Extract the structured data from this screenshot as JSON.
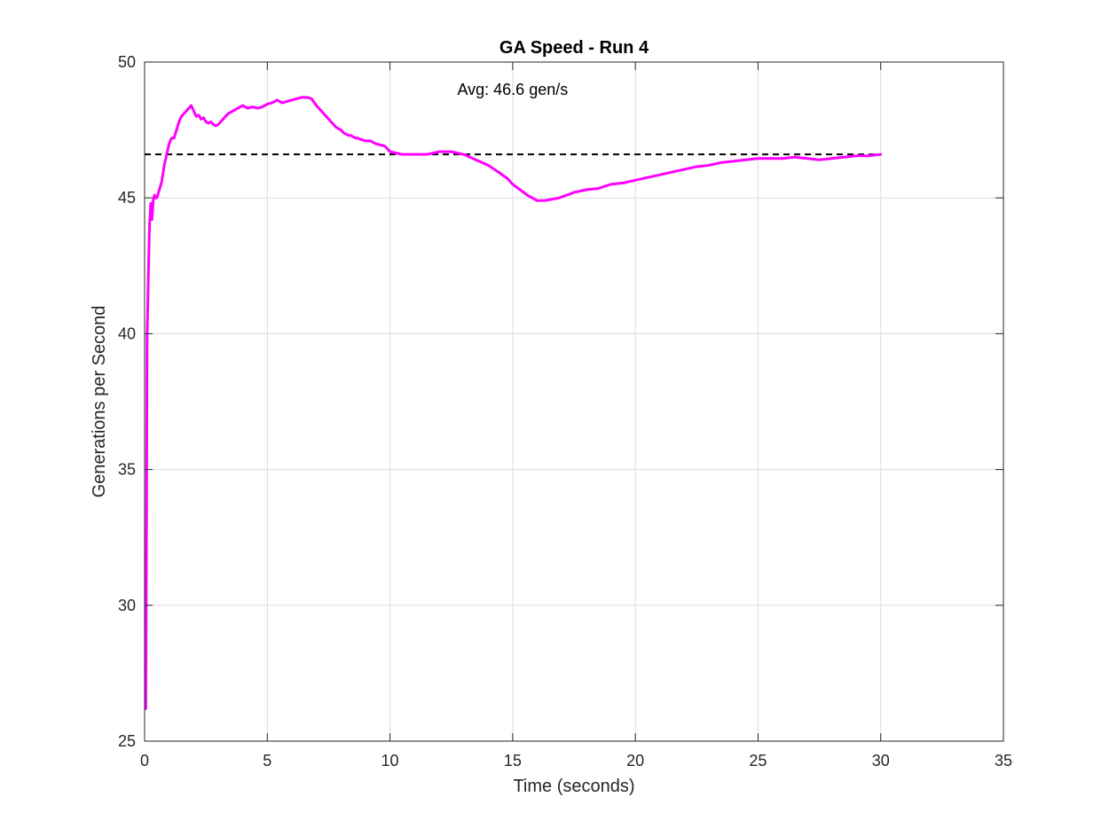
{
  "chart_data": {
    "type": "line",
    "title": "GA Speed - Run 4",
    "xlabel": "Time (seconds)",
    "ylabel": "Generations per Second",
    "xlim": [
      0,
      35
    ],
    "ylim": [
      25,
      50
    ],
    "xticks": [
      0,
      5,
      10,
      15,
      20,
      25,
      30,
      35
    ],
    "yticks": [
      25,
      30,
      35,
      40,
      45,
      50
    ],
    "xtick_labels": [
      "0",
      "5",
      "10",
      "15",
      "20",
      "25",
      "30",
      "35"
    ],
    "ytick_labels": [
      "25",
      "30",
      "35",
      "40",
      "45",
      "50"
    ],
    "grid": true,
    "series": [
      {
        "color": "#ff00ff",
        "x": [
          0.05,
          0.08,
          0.1,
          0.15,
          0.2,
          0.25,
          0.3,
          0.35,
          0.4,
          0.45,
          0.5,
          0.6,
          0.7,
          0.8,
          0.9,
          1.0,
          1.1,
          1.2,
          1.3,
          1.4,
          1.5,
          1.6,
          1.7,
          1.8,
          1.9,
          2.0,
          2.1,
          2.2,
          2.3,
          2.4,
          2.5,
          2.6,
          2.7,
          2.8,
          2.9,
          3.0,
          3.1,
          3.2,
          3.3,
          3.4,
          3.5,
          3.6,
          3.7,
          3.8,
          4.0,
          4.2,
          4.4,
          4.6,
          4.8,
          5.0,
          5.2,
          5.4,
          5.6,
          5.8,
          6.0,
          6.2,
          6.4,
          6.6,
          6.8,
          7.0,
          7.2,
          7.4,
          7.6,
          7.8,
          8.0,
          8.1,
          8.2,
          8.3,
          8.4,
          8.5,
          8.6,
          8.7,
          8.8,
          9.0,
          9.2,
          9.4,
          9.6,
          9.8,
          10.0,
          10.5,
          11.0,
          11.5,
          12.0,
          12.5,
          13.0,
          13.5,
          14.0,
          14.5,
          14.8,
          15.0,
          15.3,
          15.6,
          16.0,
          16.3,
          16.6,
          16.9,
          17.2,
          17.5,
          18.0,
          18.5,
          19.0,
          19.5,
          20.0,
          20.5,
          21.0,
          21.5,
          22.0,
          22.5,
          23.0,
          23.5,
          24.0,
          24.5,
          25.0,
          25.5,
          26.0,
          26.5,
          27.0,
          27.5,
          28.0,
          28.5,
          29.0,
          29.5,
          30.0
        ],
        "values": [
          26.2,
          33.5,
          39.8,
          42.0,
          44.0,
          44.8,
          44.2,
          44.9,
          45.1,
          45.0,
          45.0,
          45.3,
          45.6,
          46.2,
          46.6,
          47.0,
          47.2,
          47.2,
          47.5,
          47.8,
          48.0,
          48.1,
          48.2,
          48.3,
          48.4,
          48.2,
          48.0,
          48.05,
          47.9,
          47.95,
          47.8,
          47.75,
          47.8,
          47.7,
          47.65,
          47.7,
          47.8,
          47.9,
          48.0,
          48.1,
          48.15,
          48.2,
          48.25,
          48.3,
          48.4,
          48.3,
          48.35,
          48.3,
          48.35,
          48.45,
          48.5,
          48.6,
          48.5,
          48.55,
          48.6,
          48.65,
          48.7,
          48.7,
          48.65,
          48.4,
          48.2,
          48.0,
          47.8,
          47.6,
          47.5,
          47.4,
          47.35,
          47.3,
          47.3,
          47.25,
          47.2,
          47.2,
          47.15,
          47.1,
          47.1,
          47.0,
          46.95,
          46.9,
          46.7,
          46.6,
          46.6,
          46.6,
          46.7,
          46.7,
          46.6,
          46.4,
          46.2,
          45.9,
          45.7,
          45.5,
          45.3,
          45.1,
          44.9,
          44.9,
          44.95,
          45.0,
          45.1,
          45.2,
          45.3,
          45.35,
          45.5,
          45.55,
          45.65,
          45.75,
          45.85,
          45.95,
          46.05,
          46.15,
          46.2,
          46.3,
          46.35,
          46.4,
          46.45,
          46.45,
          46.45,
          46.5,
          46.45,
          46.4,
          46.45,
          46.5,
          46.55,
          46.55,
          46.6
        ]
      }
    ],
    "reference_line": {
      "y": 46.6,
      "x_range": [
        0,
        30
      ],
      "style": "dashed",
      "color": "#000000"
    },
    "annotation": {
      "text": "Avg: 46.6 gen/s",
      "x": 15,
      "y": 48.8
    }
  }
}
